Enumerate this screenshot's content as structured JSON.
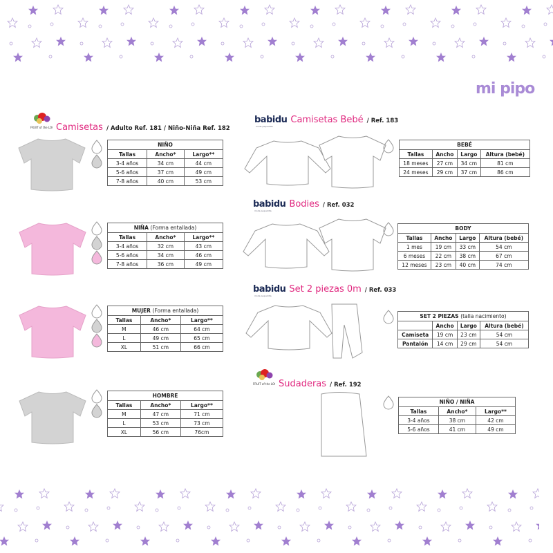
{
  "brand": {
    "mipipo": "mi pipo",
    "babidu": "babidu",
    "babidu_tagline": "moda pequeñita",
    "fruit": "FRUIT of the LOOM"
  },
  "colors": {
    "star": "#a17fd0",
    "title": "#e0287f",
    "grey_shirt": "#d0d0d0",
    "pink_shirt": "#f4b8dc"
  },
  "sections": {
    "camisetas": {
      "title": "Camisetas",
      "ref": "/ Adulto Ref. 181 / Niño-Niña Ref. 182"
    },
    "bebe": {
      "title": "Camisetas Bebé",
      "ref": "/ Ref. 183"
    },
    "bodies": {
      "title": "Bodies",
      "ref": "/ Ref. 032"
    },
    "set": {
      "title": "Set 2 piezas 0m",
      "ref": "/ Ref. 033"
    },
    "sudaderas": {
      "title": "Sudaderas",
      "ref": "/ Ref. 192"
    }
  },
  "tables": {
    "nino": {
      "title": "NIÑO",
      "subtitle": "",
      "headers": [
        "Tallas",
        "Ancho*",
        "Largo**"
      ],
      "rows": [
        [
          "3-4 años",
          "34 cm",
          "44 cm"
        ],
        [
          "5-6 años",
          "37 cm",
          "49 cm"
        ],
        [
          "7-8 años",
          "40 cm",
          "53 cm"
        ]
      ]
    },
    "nina": {
      "title": "NIÑA",
      "subtitle": "(Forma entallada)",
      "headers": [
        "Tallas",
        "Ancho*",
        "Largo**"
      ],
      "rows": [
        [
          "3-4 años",
          "32 cm",
          "43 cm"
        ],
        [
          "5-6 años",
          "34 cm",
          "46 cm"
        ],
        [
          "7-8 años",
          "36 cm",
          "49 cm"
        ]
      ]
    },
    "mujer": {
      "title": "MUJER",
      "subtitle": "(Forma entallada)",
      "headers": [
        "Tallas",
        "Ancho*",
        "Largo**"
      ],
      "rows": [
        [
          "M",
          "46 cm",
          "64 cm"
        ],
        [
          "L",
          "49 cm",
          "65 cm"
        ],
        [
          "XL",
          "51 cm",
          "66 cm"
        ]
      ]
    },
    "hombre": {
      "title": "HOMBRE",
      "subtitle": "",
      "headers": [
        "Tallas",
        "Ancho*",
        "Largo**"
      ],
      "rows": [
        [
          "M",
          "47 cm",
          "71 cm"
        ],
        [
          "L",
          "53 cm",
          "73 cm"
        ],
        [
          "XL",
          "56 cm",
          "76cm"
        ]
      ]
    },
    "bebe": {
      "title": "BEBÉ",
      "subtitle": "",
      "headers": [
        "Tallas",
        "Ancho",
        "Largo",
        "Altura (bebé)"
      ],
      "rows": [
        [
          "18 meses",
          "27 cm",
          "34 cm",
          "81 cm"
        ],
        [
          "24 meses",
          "29 cm",
          "37 cm",
          "86 cm"
        ]
      ]
    },
    "body": {
      "title": "BODY",
      "subtitle": "",
      "headers": [
        "Tallas",
        "Ancho",
        "Largo",
        "Altura (bebé)"
      ],
      "rows": [
        [
          "1 mes",
          "19 cm",
          "33 cm",
          "54 cm"
        ],
        [
          "6 meses",
          "22 cm",
          "38 cm",
          "67 cm"
        ],
        [
          "12 meses",
          "23 cm",
          "40 cm",
          "74 cm"
        ]
      ]
    },
    "set": {
      "title": "SET 2 PIEZAS",
      "subtitle": "(talla nacimiento)",
      "headers": [
        "",
        "Ancho",
        "Largo",
        "Altura (bebé)"
      ],
      "rows": [
        [
          "Camiseta",
          "19 cm",
          "23 cm",
          "54 cm"
        ],
        [
          "Pantalón",
          "14 cm",
          "29 cm",
          "54 cm"
        ]
      ]
    },
    "sudadera": {
      "title": "NIÑO / NIÑA",
      "subtitle": "",
      "headers": [
        "Tallas",
        "Ancho*",
        "Largo**"
      ],
      "rows": [
        [
          "3-4 años",
          "38 cm",
          "42 cm"
        ],
        [
          "5-6 años",
          "41 cm",
          "49 cm"
        ]
      ]
    }
  }
}
